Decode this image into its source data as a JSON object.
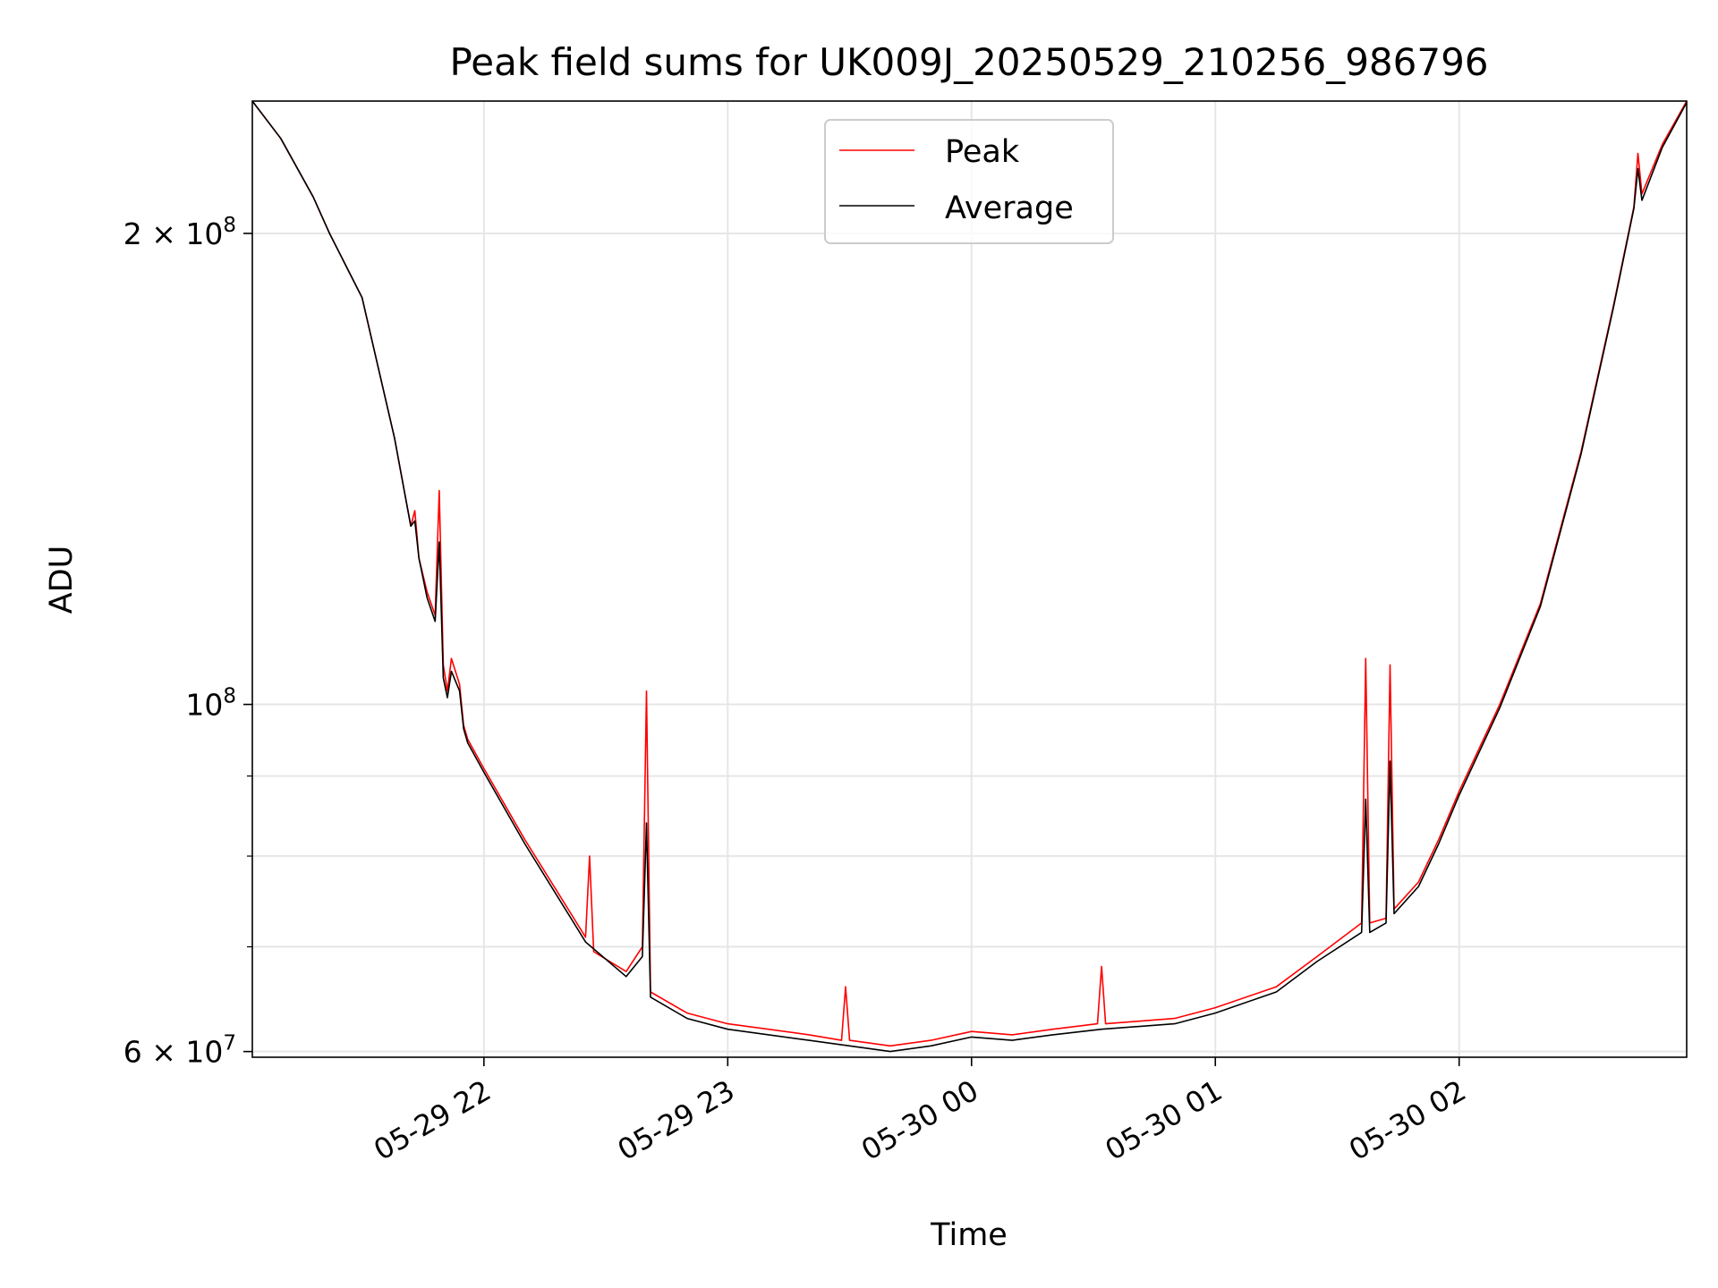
{
  "chart_data": {
    "type": "line",
    "title": "Peak field sums for UK009J_20250529_210256_986796",
    "xlabel": "Time",
    "ylabel": "ADU",
    "x_range": [
      "2025-05-29 21:03",
      "2025-05-30 02:56"
    ],
    "ylim": [
      59500000,
      243000000
    ],
    "y_scale": "log",
    "grid": true,
    "legend_position": "top-center",
    "x_ticks": [
      "05-29 22",
      "05-29 23",
      "05-30 00",
      "05-30 01",
      "05-30 02"
    ],
    "x_tick_times": [
      "2025-05-29 22:00",
      "2025-05-29 23:00",
      "2025-05-30 00:00",
      "2025-05-30 01:00",
      "2025-05-30 02:00"
    ],
    "y_ticks_major": [
      {
        "value": 60000000,
        "label": "6 × 10^7",
        "mantissa": "6 ×",
        "base": "10",
        "exp": "7"
      },
      {
        "value": 100000000,
        "label": "10^8",
        "mantissa": "",
        "base": "10",
        "exp": "8"
      },
      {
        "value": 200000000,
        "label": "2 × 10^8",
        "mantissa": "2 ×",
        "base": "10",
        "exp": "8"
      }
    ],
    "y_ticks_minor": [
      70000000,
      80000000,
      90000000
    ],
    "series": [
      {
        "name": "Peak",
        "color": "#ff0000",
        "x": [
          "2025-05-29 21:03",
          "2025-05-29 21:10",
          "2025-05-29 21:18",
          "2025-05-29 21:22",
          "2025-05-29 21:30",
          "2025-05-29 21:38",
          "2025-05-29 21:42",
          "2025-05-29 21:43",
          "2025-05-29 21:44",
          "2025-05-29 21:46",
          "2025-05-29 21:48",
          "2025-05-29 21:49",
          "2025-05-29 21:50",
          "2025-05-29 21:51",
          "2025-05-29 21:52",
          "2025-05-29 21:54",
          "2025-05-29 21:55",
          "2025-05-29 21:56",
          "2025-05-29 22:00",
          "2025-05-29 22:10",
          "2025-05-29 22:20",
          "2025-05-29 22:25",
          "2025-05-29 22:26",
          "2025-05-29 22:27",
          "2025-05-29 22:35",
          "2025-05-29 22:39",
          "2025-05-29 22:40",
          "2025-05-29 22:41",
          "2025-05-29 22:50",
          "2025-05-29 23:00",
          "2025-05-29 23:20",
          "2025-05-29 23:28",
          "2025-05-29 23:29",
          "2025-05-29 23:30",
          "2025-05-29 23:40",
          "2025-05-29 23:50",
          "2025-05-30 00:00",
          "2025-05-30 00:10",
          "2025-05-30 00:20",
          "2025-05-30 00:31",
          "2025-05-30 00:32",
          "2025-05-30 00:33",
          "2025-05-30 00:50",
          "2025-05-30 01:00",
          "2025-05-30 01:15",
          "2025-05-30 01:25",
          "2025-05-30 01:36",
          "2025-05-30 01:37",
          "2025-05-30 01:38",
          "2025-05-30 01:42",
          "2025-05-30 01:43",
          "2025-05-30 01:44",
          "2025-05-30 01:50",
          "2025-05-30 01:55",
          "2025-05-30 02:00",
          "2025-05-30 02:10",
          "2025-05-30 02:20",
          "2025-05-30 02:30",
          "2025-05-30 02:38",
          "2025-05-30 02:43",
          "2025-05-30 02:44",
          "2025-05-30 02:45",
          "2025-05-30 02:50",
          "2025-05-30 02:56"
        ],
        "y": [
          243000000,
          230000000,
          211000000,
          200000000,
          182000000,
          148000000,
          130000000,
          133000000,
          124000000,
          118000000,
          114000000,
          137000000,
          106000000,
          102000000,
          107000000,
          103000000,
          97000000,
          95000000,
          91000000,
          82000000,
          74500000,
          71000000,
          80000000,
          69500000,
          67500000,
          70000000,
          102000000,
          65500000,
          63500000,
          62500000,
          61500000,
          61000000,
          66000000,
          61000000,
          60500000,
          61000000,
          61800000,
          61500000,
          62000000,
          62500000,
          68000000,
          62500000,
          63000000,
          64000000,
          66000000,
          69000000,
          72500000,
          107000000,
          72500000,
          73000000,
          106000000,
          74000000,
          77000000,
          82000000,
          88000000,
          100000000,
          116000000,
          145000000,
          180000000,
          208000000,
          225000000,
          212000000,
          228000000,
          243000000
        ]
      },
      {
        "name": "Average",
        "color": "#000000",
        "x": [
          "2025-05-29 21:03",
          "2025-05-29 21:10",
          "2025-05-29 21:18",
          "2025-05-29 21:22",
          "2025-05-29 21:30",
          "2025-05-29 21:38",
          "2025-05-29 21:42",
          "2025-05-29 21:43",
          "2025-05-29 21:44",
          "2025-05-29 21:46",
          "2025-05-29 21:48",
          "2025-05-29 21:49",
          "2025-05-29 21:50",
          "2025-05-29 21:51",
          "2025-05-29 21:52",
          "2025-05-29 21:54",
          "2025-05-29 21:55",
          "2025-05-29 21:56",
          "2025-05-29 22:00",
          "2025-05-29 22:10",
          "2025-05-29 22:20",
          "2025-05-29 22:25",
          "2025-05-29 22:35",
          "2025-05-29 22:39",
          "2025-05-29 22:40",
          "2025-05-29 22:41",
          "2025-05-29 22:50",
          "2025-05-29 23:00",
          "2025-05-29 23:20",
          "2025-05-29 23:30",
          "2025-05-29 23:40",
          "2025-05-29 23:50",
          "2025-05-30 00:00",
          "2025-05-30 00:10",
          "2025-05-30 00:20",
          "2025-05-30 00:32",
          "2025-05-30 00:50",
          "2025-05-30 01:00",
          "2025-05-30 01:15",
          "2025-05-30 01:25",
          "2025-05-30 01:36",
          "2025-05-30 01:37",
          "2025-05-30 01:38",
          "2025-05-30 01:42",
          "2025-05-30 01:43",
          "2025-05-30 01:44",
          "2025-05-30 01:50",
          "2025-05-30 01:55",
          "2025-05-30 02:00",
          "2025-05-30 02:10",
          "2025-05-30 02:20",
          "2025-05-30 02:30",
          "2025-05-30 02:38",
          "2025-05-30 02:43",
          "2025-05-30 02:44",
          "2025-05-30 02:45",
          "2025-05-30 02:50",
          "2025-05-30 02:56"
        ],
        "y": [
          243000000,
          230000000,
          211000000,
          200000000,
          182000000,
          148000000,
          130000000,
          131000000,
          124000000,
          117000000,
          113000000,
          127000000,
          104000000,
          101000000,
          105000000,
          102000000,
          96500000,
          94500000,
          90500000,
          81500000,
          74000000,
          70500000,
          67000000,
          69000000,
          84000000,
          65000000,
          63000000,
          62000000,
          61000000,
          60500000,
          60000000,
          60500000,
          61300000,
          61000000,
          61500000,
          62000000,
          62500000,
          63500000,
          65500000,
          68500000,
          71500000,
          87000000,
          71500000,
          72500000,
          92000000,
          73500000,
          76500000,
          81500000,
          87500000,
          99500000,
          115500000,
          144500000,
          179500000,
          207500000,
          220000000,
          210000000,
          227000000,
          242500000
        ]
      }
    ]
  }
}
